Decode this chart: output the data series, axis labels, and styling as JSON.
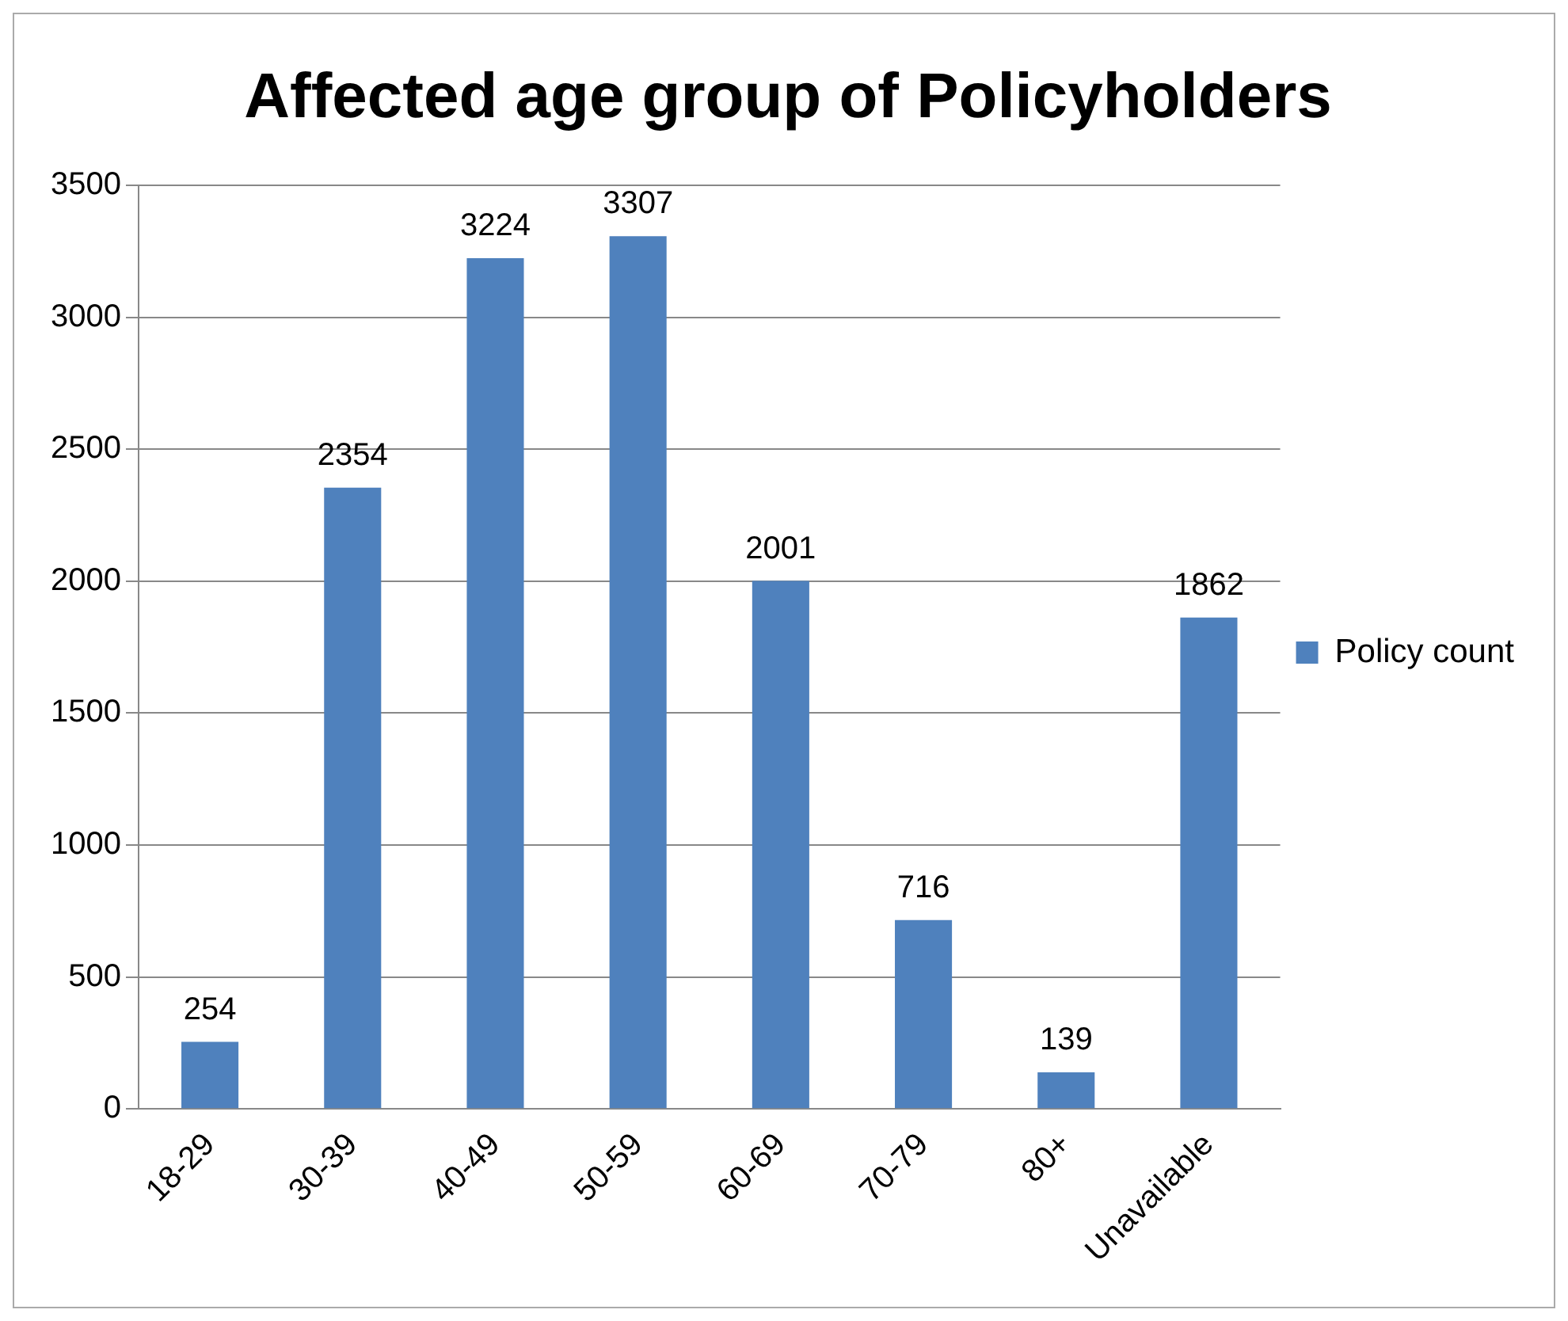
{
  "chart_data": {
    "type": "bar",
    "title": "Affected age group of Policyholders",
    "categories": [
      "18-29",
      "30-39",
      "40-49",
      "50-59",
      "60-69",
      "70-79",
      "80+",
      "Unavailable"
    ],
    "series": [
      {
        "name": "Policy count",
        "color": "#4f81bd",
        "values": [
          254,
          2354,
          3224,
          3307,
          2001,
          716,
          139,
          1862
        ]
      }
    ],
    "ylim": [
      0,
      3500
    ],
    "yticks": [
      0,
      500,
      1000,
      1500,
      2000,
      2500,
      3000,
      3500
    ],
    "grid": "y",
    "legend": "right",
    "data_labels": true
  }
}
